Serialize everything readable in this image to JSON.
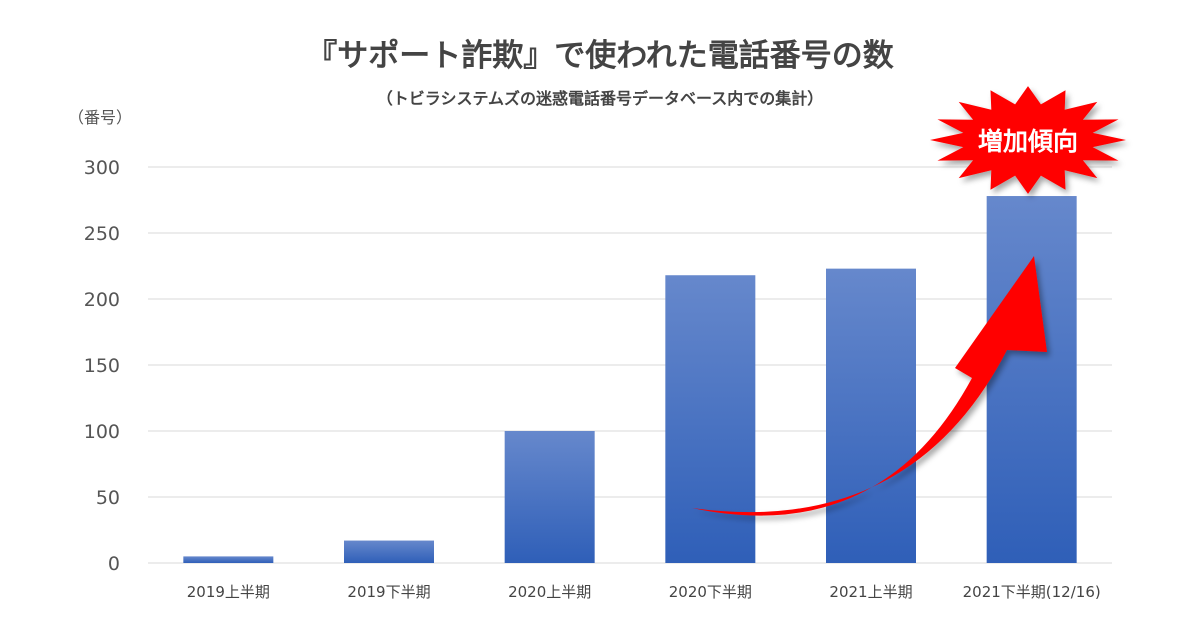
{
  "chart_data": {
    "type": "bar",
    "title": "『サポート詐欺』で使われた電話番号の数",
    "subtitle": "（トビラシステムズの迷惑電話番号データベース内での集計）",
    "ylabel": "（番号）",
    "xlabel": "",
    "categories": [
      "2019上半期",
      "2019下半期",
      "2020上半期",
      "2020下半期",
      "2021上半期",
      "2021下半期(12/16)"
    ],
    "values": [
      5,
      17,
      100,
      218,
      223,
      278
    ],
    "ylim": [
      0,
      300
    ],
    "yticks": [
      "0",
      "50",
      "100",
      "150",
      "200",
      "250",
      "300"
    ],
    "grid": true,
    "annotation": "増加傾向"
  },
  "colors": {
    "bar_top": "#6688cc",
    "bar_bottom": "#2f5fb8",
    "arrow": "#ff0000",
    "grid": "#d9d9d9",
    "badge": "#ff0000"
  }
}
